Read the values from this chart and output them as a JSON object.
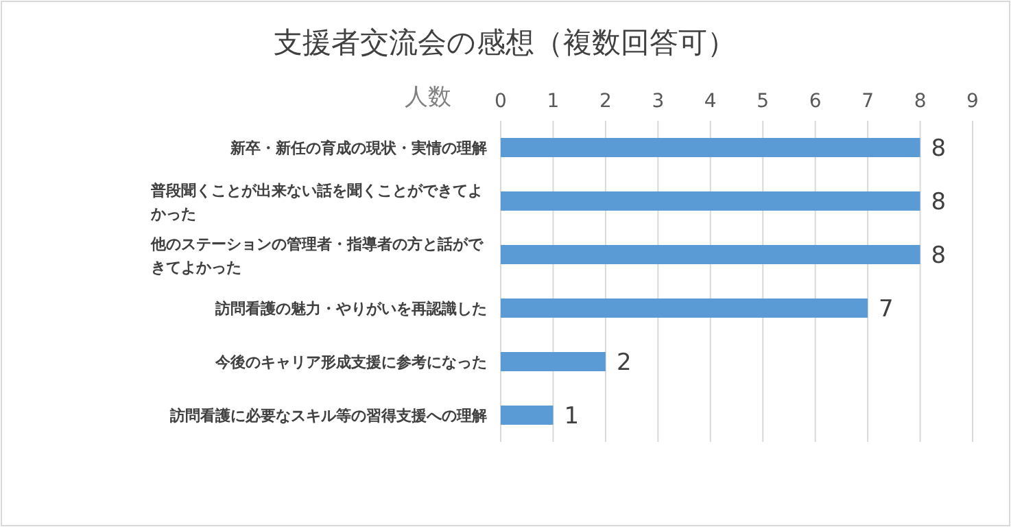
{
  "chart_data": {
    "type": "bar",
    "orientation": "horizontal",
    "title": "支援者交流会の感想（複数回答可）",
    "xlabel": "人数",
    "categories": [
      "新卒・新任の育成の現状・実情の理解",
      "普段聞くことが出来ない話を聞くことができてよかった",
      "他のステーションの管理者・指導者の方と話ができてよかった",
      "訪問看護の魅力・やりがいを再認識した",
      "今後のキャリア形成支援に参考になった",
      "訪問看護に必要なスキル等の習得支援への理解"
    ],
    "values": [
      8,
      8,
      8,
      7,
      2,
      1
    ],
    "color": "#5b9bd5",
    "xlim": [
      0,
      9
    ],
    "xticks": [
      0,
      1,
      2,
      3,
      4,
      5,
      6,
      7,
      8,
      9
    ],
    "grid": "x",
    "data_labels": true
  }
}
